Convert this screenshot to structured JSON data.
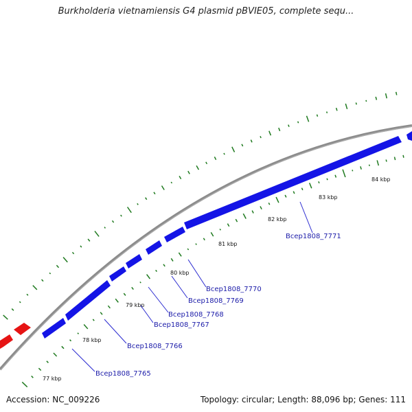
{
  "title": "Burkholderia vietnamiensis G4 plasmid pBVIE05, complete sequ...",
  "accession": "Accession: NC_009226",
  "summary": "Topology: circular; Length: 88,096 bp; Genes: 111",
  "colors": {
    "backbone": "#8c8c8c",
    "forward_gene": "#1414e6",
    "reverse_gene": "#e61414",
    "gc_marks": "#1f7a1f",
    "label_line": "#2a2ad0"
  },
  "scale_labels": [
    "77 kbp",
    "78 kbp",
    "79 kbp",
    "80 kbp",
    "81 kbp",
    "82 kbp",
    "83 kbp",
    "84 kbp"
  ],
  "gene_labels": [
    "Bcep1808_7765",
    "Bcep1808_7766",
    "Bcep1808_7767",
    "Bcep1808_7768",
    "Bcep1808_7769",
    "Bcep1808_7770",
    "Bcep1808_7771"
  ]
}
